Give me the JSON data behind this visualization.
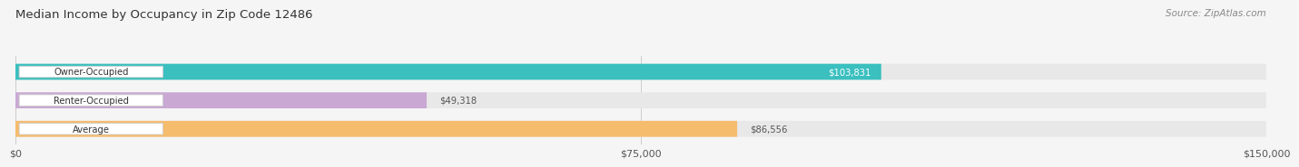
{
  "title": "Median Income by Occupancy in Zip Code 12486",
  "source": "Source: ZipAtlas.com",
  "categories": [
    "Owner-Occupied",
    "Renter-Occupied",
    "Average"
  ],
  "values": [
    103831,
    49318,
    86556
  ],
  "bar_colors": [
    "#3bbfbf",
    "#c9a8d4",
    "#f5bc6e"
  ],
  "label_text_colors": [
    "#ffffff",
    "#555555",
    "#555555"
  ],
  "value_labels": [
    "$103,831",
    "$49,318",
    "$86,556"
  ],
  "xmax": 150000,
  "xticks": [
    0,
    75000,
    150000
  ],
  "xtick_labels": [
    "$0",
    "$75,000",
    "$150,000"
  ],
  "background_color": "#f5f5f5",
  "bar_height": 0.55,
  "bar_bg_color": "#e8e8e8"
}
